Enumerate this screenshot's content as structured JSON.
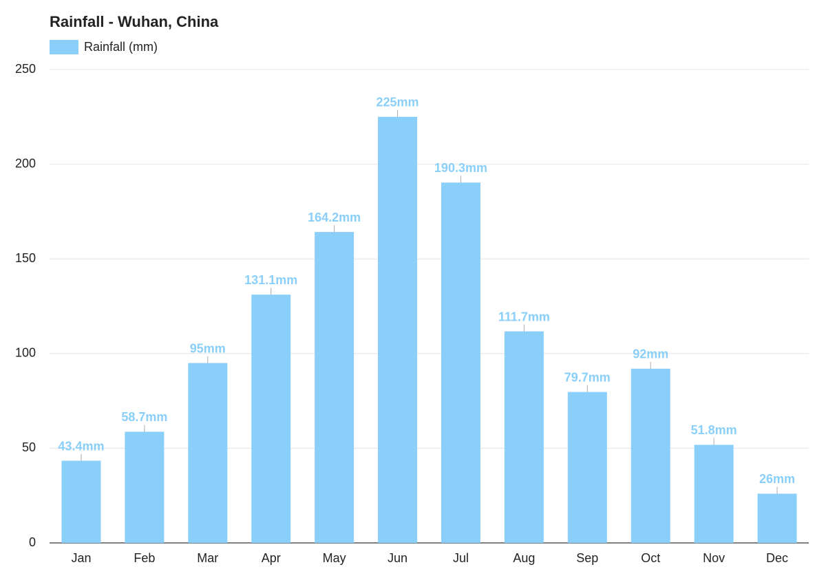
{
  "chart_data": {
    "type": "bar",
    "title": "Rainfall - Wuhan, China",
    "categories": [
      "Jan",
      "Feb",
      "Mar",
      "Apr",
      "May",
      "Jun",
      "Jul",
      "Aug",
      "Sep",
      "Oct",
      "Nov",
      "Dec"
    ],
    "series": [
      {
        "name": "Rainfall (mm)",
        "color": "#89cff9",
        "values": [
          43.4,
          58.7,
          95,
          131.1,
          164.2,
          225,
          190.3,
          111.7,
          79.7,
          92,
          51.8,
          26
        ],
        "value_labels": [
          "43.4mm",
          "58.7mm",
          "95mm",
          "131.1mm",
          "164.2mm",
          "225mm",
          "190.3mm",
          "111.7mm",
          "79.7mm",
          "92mm",
          "51.8mm",
          "26mm"
        ]
      }
    ],
    "ylim": [
      0,
      250
    ],
    "yticks": [
      0,
      50,
      100,
      150,
      200,
      250
    ],
    "grid": true
  }
}
